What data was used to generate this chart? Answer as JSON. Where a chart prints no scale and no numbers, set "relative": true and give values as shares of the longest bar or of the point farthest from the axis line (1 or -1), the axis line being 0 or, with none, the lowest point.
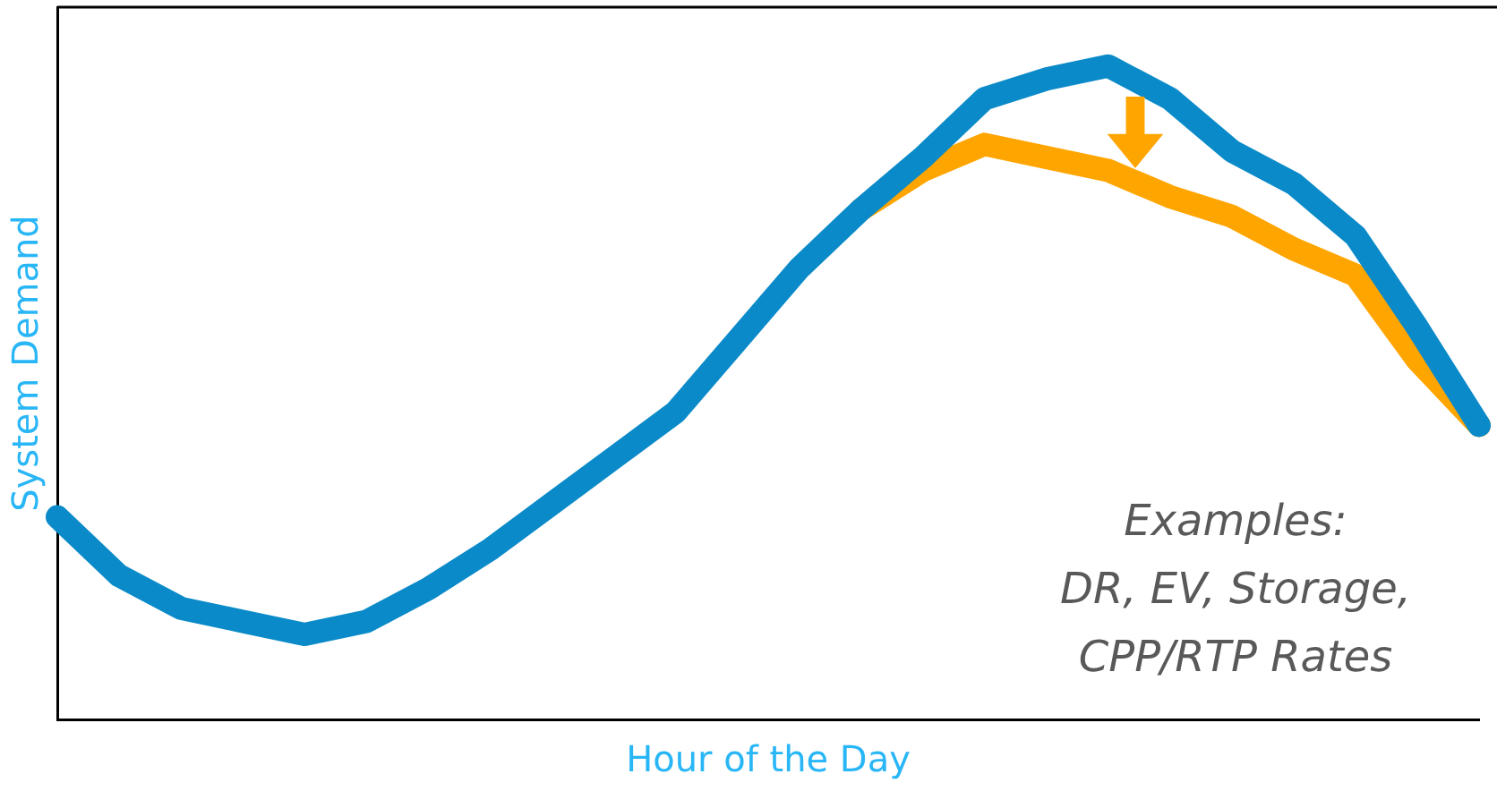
{
  "chart_data": {
    "type": "line",
    "relative": true,
    "xlabel": "Hour of the Day",
    "ylabel": "System Demand",
    "categories": [
      null,
      null,
      null,
      null,
      null,
      null,
      null,
      null,
      null,
      null,
      null,
      null,
      null,
      null,
      null,
      null,
      null,
      null,
      null,
      null,
      null,
      null,
      null,
      null
    ],
    "series": [
      {
        "color": "#ffa500",
        "values": [
          null,
          null,
          null,
          null,
          null,
          null,
          null,
          null,
          null,
          null,
          null,
          null,
          null,
          0.78,
          0.84,
          0.88,
          0.86,
          0.84,
          0.8,
          0.77,
          0.72,
          0.68,
          0.55,
          0.45
        ]
      },
      {
        "color": "#0a8ac8",
        "values": [
          0.31,
          0.22,
          0.17,
          0.15,
          0.13,
          0.15,
          0.2,
          0.26,
          0.33,
          0.4,
          0.47,
          0.58,
          0.69,
          0.78,
          0.86,
          0.95,
          0.98,
          1,
          0.95,
          0.87,
          0.82,
          0.74,
          0.6,
          0.45
        ]
      }
    ],
    "annotations": [
      "Examples:",
      "DR, EV, Storage,",
      "CPP/RTP Rates"
    ],
    "legend": false,
    "grid": false,
    "tick_labels": false,
    "marker": "none",
    "line_style": "solid"
  }
}
